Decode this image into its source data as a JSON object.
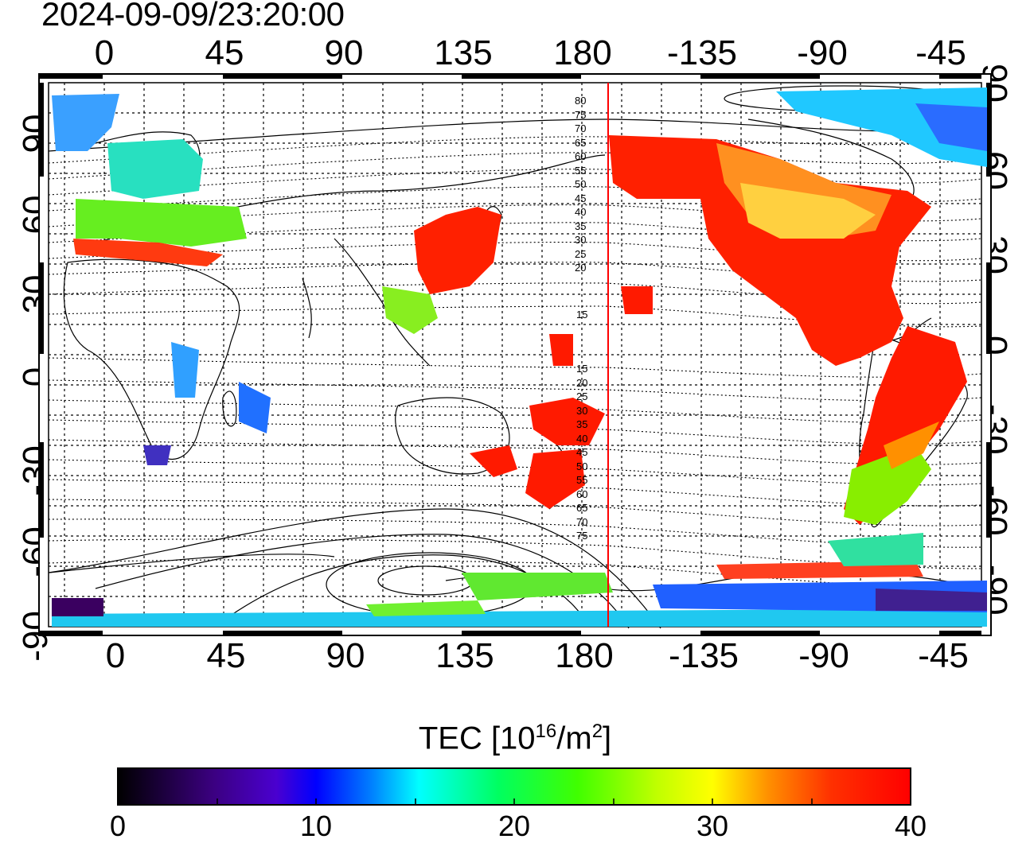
{
  "header": {
    "timestamp": "2024-09-09/23:20:00"
  },
  "axes": {
    "longitude_labels": [
      "0",
      "45",
      "90",
      "135",
      "180",
      "-135",
      "-90",
      "-45"
    ],
    "latitude_labels": [
      "90",
      "60",
      "30",
      "0",
      "-30",
      "-60",
      "-90"
    ]
  },
  "map": {
    "projection": "cylindrical equidistant, centered ~160E",
    "dip_latitude_contours_north": [
      "80",
      "75",
      "70",
      "65",
      "60",
      "55",
      "50",
      "45",
      "40",
      "35",
      "30",
      "25",
      "20",
      "15"
    ],
    "dip_latitude_contours_south": [
      "15",
      "20",
      "25",
      "30",
      "35",
      "40",
      "45",
      "50",
      "55",
      "60",
      "65",
      "70",
      "75"
    ],
    "terminator_color": "#ff0000"
  },
  "colorbar": {
    "title_prefix": "TEC  [10",
    "title_exp": "16",
    "title_mid": "/m",
    "title_exp2": "2",
    "title_suffix": "]",
    "ticks": [
      "0",
      "10",
      "20",
      "30",
      "40"
    ],
    "range": [
      0,
      40
    ],
    "colors": [
      "#000000",
      "#3b0080",
      "#4a00d0",
      "#0000ff",
      "#0080ff",
      "#00ffff",
      "#00ff60",
      "#40ff00",
      "#c0ff00",
      "#ffff00",
      "#ff9000",
      "#ff3000",
      "#ff0000"
    ]
  }
}
